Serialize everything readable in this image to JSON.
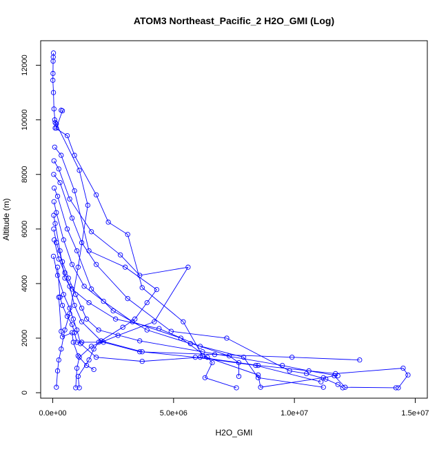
{
  "chart_data": {
    "type": "line",
    "title": "ATOM3 Northeast_Pacific_2 H2O_GMI (Log)",
    "xlabel": "H2O_GMI",
    "ylabel": "Altitude (m)",
    "xlim": [
      -500000,
      15500000
    ],
    "ylim": [
      -200,
      12900
    ],
    "x_ticks": [
      {
        "value": 0,
        "label": "0.0e+00"
      },
      {
        "value": 5000000,
        "label": "5.0e+06"
      },
      {
        "value": 10000000,
        "label": "1.0e+07"
      },
      {
        "value": 15000000,
        "label": "1.5e+07"
      }
    ],
    "y_ticks": [
      {
        "value": 0,
        "label": "0"
      },
      {
        "value": 2000,
        "label": "2000"
      },
      {
        "value": 4000,
        "label": "4000"
      },
      {
        "value": 6000,
        "label": "6000"
      },
      {
        "value": 8000,
        "label": "8000"
      },
      {
        "value": 10000,
        "label": "10000"
      },
      {
        "value": 12000,
        "label": "12000"
      }
    ],
    "grid": false,
    "legend": "none",
    "marker": "open-circle",
    "series_color": "#0000ff",
    "series": [
      {
        "x": [
          30000,
          20000,
          15000,
          10000,
          5000,
          30000,
          50000,
          100000,
          150000,
          400000,
          350000
        ],
        "y": [
          12450,
          12300,
          12150,
          11700,
          11450,
          11000,
          10400,
          9900,
          9700,
          10330,
          10350
        ]
      },
      {
        "x": [
          80000,
          150000,
          1100000,
          1450000,
          1050000,
          700000,
          500000,
          350000,
          250000,
          200000,
          150000
        ],
        "y": [
          10000,
          9850,
          8150,
          6870,
          4600,
          2900,
          2300,
          1600,
          1200,
          800,
          200
        ]
      },
      {
        "x": [
          100000,
          600000,
          900000,
          1800000,
          2300000,
          3100000,
          3700000,
          5400000,
          6200000,
          8500000,
          8600000,
          11200000,
          11650000,
          12100000,
          14200000
        ],
        "y": [
          9700,
          9420,
          8700,
          7250,
          6250,
          5800,
          3850,
          2600,
          1350,
          650,
          200,
          550,
          620,
          200,
          180
        ]
      },
      {
        "x": [
          80000,
          350000,
          900000,
          1500000,
          3000000,
          4300000,
          3900000,
          3400000,
          2900000,
          1900000,
          1700000,
          1500000,
          1050000,
          1100000
        ],
        "y": [
          9000,
          8700,
          7400,
          5200,
          4600,
          3780,
          3300,
          2700,
          2400,
          1850,
          1600,
          1200,
          600,
          180
        ]
      },
      {
        "x": [
          50000,
          250000,
          700000,
          1600000,
          2800000,
          3600000,
          5600000,
          4200000,
          2700000,
          1600000,
          1100000,
          1000000,
          950000
        ],
        "y": [
          8500,
          8200,
          7100,
          5900,
          5050,
          4300,
          4600,
          2600,
          2100,
          1700,
          1300,
          900,
          180
        ]
      },
      {
        "x": [
          40000,
          300000,
          800000,
          1200000,
          1800000,
          3100000,
          4900000,
          7200000,
          9800000,
          10500000,
          11300000,
          11800000,
          12000000
        ],
        "y": [
          8000,
          7700,
          6400,
          5500,
          4700,
          3450,
          2250,
          2000,
          800,
          700,
          500,
          300,
          180
        ]
      },
      {
        "x": [
          60000,
          200000,
          600000,
          1000000,
          1600000,
          2500000,
          3900000,
          5700000,
          7900000,
          8500000,
          11200000
        ],
        "y": [
          7500,
          7200,
          6000,
          5200,
          3800,
          3000,
          2300,
          1800,
          1300,
          550,
          200
        ]
      },
      {
        "x": [
          50000,
          150000,
          450000,
          800000,
          1300000,
          2100000,
          3300000,
          5300000,
          6400000,
          6600000,
          6300000,
          7600000
        ],
        "y": [
          7000,
          6600,
          5600,
          4700,
          3900,
          3350,
          2600,
          2000,
          1300,
          1100,
          550,
          180
        ]
      },
      {
        "x": [
          40000,
          100000,
          300000,
          500000,
          800000,
          1500000,
          2600000,
          4400000,
          6100000,
          7300000,
          7700000,
          7700000
        ],
        "y": [
          6500,
          6200,
          5200,
          4200,
          3800,
          3300,
          2700,
          2350,
          1700,
          1350,
          1100,
          600
        ]
      },
      {
        "x": [
          40000,
          150000,
          400000,
          650000,
          950000,
          1200000,
          1400000,
          1900000,
          3600000,
          6200000,
          9500000,
          10600000,
          11800000
        ],
        "y": [
          6000,
          5500,
          4800,
          4200,
          3600,
          3100,
          2700,
          2300,
          1900,
          1500,
          1000,
          800,
          620
        ]
      },
      {
        "x": [
          60000,
          250000,
          500000,
          700000,
          900000,
          1200000,
          2000000,
          3700000,
          5900000,
          8400000,
          11100000
        ],
        "y": [
          5600,
          4900,
          4400,
          3900,
          3200,
          2600,
          1900,
          1500,
          1300,
          1000,
          400
        ]
      },
      {
        "x": [
          30000,
          200000,
          450000,
          700000,
          850000,
          1000000,
          1150000,
          1800000,
          3700000,
          6100000,
          8500000,
          11700000,
          14500000,
          14700000,
          14300000
        ],
        "y": [
          5000,
          4300,
          3600,
          3100,
          2700,
          2300,
          1800,
          1300,
          1150,
          1300,
          1000,
          700,
          900,
          650,
          180
        ]
      },
      {
        "x": [
          200000,
          300000,
          400000,
          600000,
          800000,
          900000,
          1000000,
          1200000,
          2100000,
          3600000,
          6700000,
          9900000,
          12700000
        ],
        "y": [
          4600,
          3500,
          3200,
          2800,
          2500,
          2200,
          1850,
          1850,
          1850,
          1500,
          1400,
          1300,
          1200
        ]
      },
      {
        "x": [
          250000,
          350000,
          400000,
          800000,
          850000,
          1050000,
          1400000,
          1700000
        ],
        "y": [
          3500,
          2250,
          2050,
          2200,
          1850,
          1350,
          1000,
          850
        ]
      }
    ]
  }
}
